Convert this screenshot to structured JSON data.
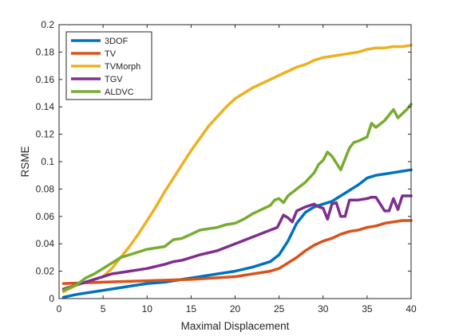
{
  "chart_data": {
    "type": "line",
    "xlabel": "Maximal Displacement",
    "ylabel": "RSME",
    "xlim": [
      0,
      40
    ],
    "ylim": [
      0,
      0.2
    ],
    "xticks": [
      "0",
      "5",
      "10",
      "15",
      "20",
      "25",
      "30",
      "35",
      "40"
    ],
    "yticks": [
      "0",
      "0.02",
      "0.04",
      "0.06",
      "0.08",
      "0.1",
      "0.12",
      "0.14",
      "0.16",
      "0.18",
      "0.2"
    ],
    "grid": false,
    "legend_position": "top-left",
    "series": [
      {
        "name": "3DOF",
        "color": "#0072BD",
        "x": [
          0.5,
          2,
          4,
          6,
          8,
          10,
          12,
          14,
          16,
          18,
          20,
          22,
          24,
          25,
          26,
          27,
          28,
          29,
          30,
          31,
          32,
          33,
          34,
          35,
          36,
          37,
          38,
          39,
          40
        ],
        "y": [
          0.001,
          0.003,
          0.005,
          0.007,
          0.009,
          0.011,
          0.012,
          0.014,
          0.016,
          0.018,
          0.02,
          0.023,
          0.027,
          0.032,
          0.042,
          0.055,
          0.063,
          0.067,
          0.069,
          0.071,
          0.075,
          0.079,
          0.083,
          0.088,
          0.09,
          0.091,
          0.092,
          0.093,
          0.094
        ]
      },
      {
        "name": "TV",
        "color": "#D95319",
        "x": [
          0.5,
          5,
          10,
          15,
          20,
          22,
          24,
          25,
          26,
          27,
          28,
          29,
          30,
          31,
          32,
          33,
          34,
          35,
          36,
          37,
          38,
          39,
          40
        ],
        "y": [
          0.011,
          0.012,
          0.013,
          0.014,
          0.016,
          0.018,
          0.02,
          0.022,
          0.026,
          0.03,
          0.035,
          0.039,
          0.042,
          0.044,
          0.047,
          0.049,
          0.05,
          0.052,
          0.053,
          0.055,
          0.056,
          0.057,
          0.057
        ]
      },
      {
        "name": "TVMorph",
        "color": "#EDB120",
        "x": [
          0.5,
          2,
          4,
          5,
          6,
          7,
          8,
          9,
          10,
          11,
          12,
          13,
          14,
          15,
          16,
          17,
          18,
          19,
          20,
          21,
          22,
          23,
          24,
          25,
          26,
          27,
          28,
          29,
          30,
          31,
          32,
          33,
          34,
          35,
          36,
          37,
          38,
          39,
          40
        ],
        "y": [
          0.005,
          0.01,
          0.014,
          0.016,
          0.022,
          0.03,
          0.038,
          0.047,
          0.057,
          0.067,
          0.078,
          0.088,
          0.098,
          0.108,
          0.117,
          0.126,
          0.133,
          0.14,
          0.146,
          0.15,
          0.154,
          0.157,
          0.16,
          0.163,
          0.166,
          0.169,
          0.171,
          0.174,
          0.176,
          0.177,
          0.178,
          0.179,
          0.18,
          0.182,
          0.183,
          0.183,
          0.184,
          0.184,
          0.185
        ]
      },
      {
        "name": "TGV",
        "color": "#7E2F8E",
        "x": [
          0.5,
          2,
          4,
          6,
          8,
          10,
          12,
          13,
          14,
          15,
          16,
          18,
          20,
          22,
          24,
          24.8,
          25.5,
          26,
          26.5,
          27,
          28,
          29,
          29.5,
          30,
          30.5,
          31,
          31.5,
          32,
          32.5,
          33,
          34,
          35,
          35.5,
          36,
          37,
          37.5,
          38,
          38.5,
          39,
          40
        ],
        "y": [
          0.007,
          0.01,
          0.014,
          0.018,
          0.02,
          0.022,
          0.025,
          0.027,
          0.028,
          0.03,
          0.032,
          0.035,
          0.04,
          0.045,
          0.05,
          0.052,
          0.061,
          0.059,
          0.056,
          0.064,
          0.067,
          0.069,
          0.067,
          0.066,
          0.058,
          0.069,
          0.07,
          0.06,
          0.06,
          0.072,
          0.072,
          0.073,
          0.074,
          0.074,
          0.064,
          0.064,
          0.073,
          0.065,
          0.075,
          0.075
        ]
      },
      {
        "name": "ALDVC",
        "color": "#77AC30",
        "x": [
          0.5,
          2,
          3,
          4,
          5,
          6,
          7,
          8,
          9,
          10,
          11,
          12,
          13,
          14,
          15,
          16,
          17,
          18,
          19,
          20,
          21,
          22,
          23,
          24,
          24.5,
          25,
          25.5,
          26,
          27,
          28,
          29,
          29.5,
          30,
          30.5,
          31,
          32,
          33,
          33.5,
          34,
          35,
          35.5,
          36,
          37,
          38,
          38.5,
          39,
          39.5,
          40
        ],
        "y": [
          0.006,
          0.01,
          0.015,
          0.018,
          0.022,
          0.026,
          0.03,
          0.032,
          0.034,
          0.036,
          0.037,
          0.038,
          0.043,
          0.044,
          0.047,
          0.05,
          0.051,
          0.052,
          0.054,
          0.055,
          0.058,
          0.062,
          0.065,
          0.068,
          0.072,
          0.073,
          0.07,
          0.075,
          0.08,
          0.085,
          0.092,
          0.098,
          0.101,
          0.107,
          0.104,
          0.094,
          0.11,
          0.114,
          0.115,
          0.118,
          0.128,
          0.125,
          0.13,
          0.138,
          0.132,
          0.135,
          0.138,
          0.142
        ]
      }
    ]
  }
}
